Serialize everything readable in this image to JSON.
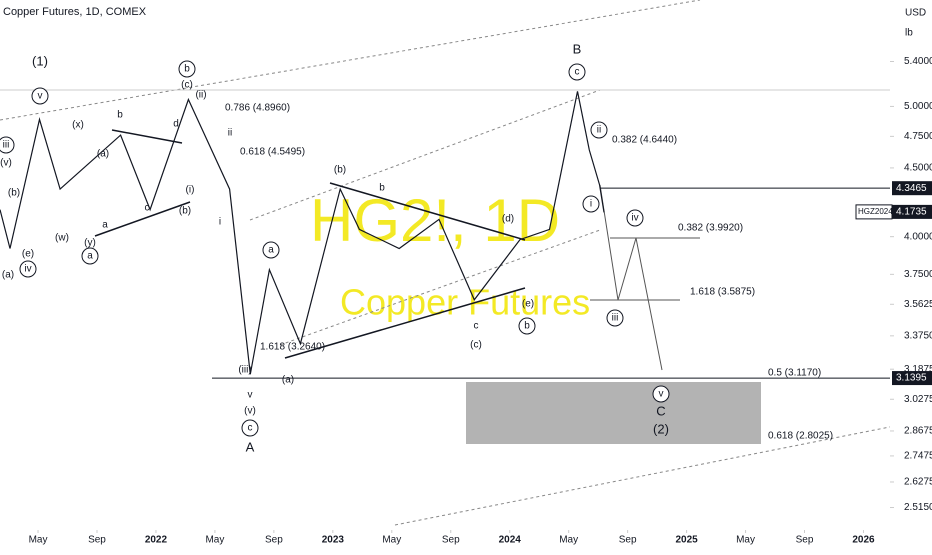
{
  "chart_data": {
    "type": "line",
    "title": "Copper Futures, 1D, COMEX",
    "watermark": "HG2!, 1D",
    "watermark_subtitle": "Copper Futures",
    "currency": "USD",
    "unit": "lb",
    "log_scale": true,
    "x": [
      1.42,
      2.1,
      4.1,
      5.5,
      9.6,
      11.6,
      14.2,
      17.0,
      18.4,
      19.7,
      21.8,
      24.5,
      25.8,
      28.5,
      31.2,
      33.6,
      36.7,
      38.7,
      40.6,
      41.4,
      42.1,
      42.4
    ],
    "values": [
      4.19,
      3.92,
      4.89,
      4.34,
      4.76,
      4.19,
      5.06,
      4.34,
      3.16,
      3.78,
      3.33,
      4.34,
      4.05,
      3.92,
      4.12,
      3.59,
      3.98,
      4.05,
      5.13,
      4.64,
      4.37,
      4.17
    ],
    "color": "#131722",
    "xlim": [
      1.42,
      61.8
    ],
    "xticks": [
      {
        "value": 4,
        "label": "May"
      },
      {
        "value": 8,
        "label": "Sep"
      },
      {
        "value": 12,
        "label": "2022"
      },
      {
        "value": 16,
        "label": "May"
      },
      {
        "value": 20,
        "label": "Sep"
      },
      {
        "value": 24,
        "label": "2023"
      },
      {
        "value": 28,
        "label": "May"
      },
      {
        "value": 32,
        "label": "Sep"
      },
      {
        "value": 36,
        "label": "2024"
      },
      {
        "value": 40,
        "label": "May"
      },
      {
        "value": 44,
        "label": "Sep"
      },
      {
        "value": 48,
        "label": "2025"
      },
      {
        "value": 52,
        "label": "May"
      },
      {
        "value": 56,
        "label": "Sep"
      },
      {
        "value": 60,
        "label": "2026"
      }
    ],
    "ylim": [
      2.42,
      6.0
    ],
    "yticks": [
      {
        "value": 5.4,
        "label": "5.4000"
      },
      {
        "value": 5.0,
        "label": "5.0000"
      },
      {
        "value": 4.75,
        "label": "4.7500"
      },
      {
        "value": 4.5,
        "label": "4.5000"
      },
      {
        "value": 4.0,
        "label": "4.0000"
      },
      {
        "value": 3.75,
        "label": "3.7500"
      },
      {
        "value": 3.5625,
        "label": "3.5625"
      },
      {
        "value": 3.375,
        "label": "3.3750"
      },
      {
        "value": 3.1875,
        "label": "3.1875"
      },
      {
        "value": 3.0275,
        "label": "3.0275"
      },
      {
        "value": 2.8675,
        "label": "2.8675"
      },
      {
        "value": 2.7475,
        "label": "2.7475"
      },
      {
        "value": 2.6275,
        "label": "2.6275"
      },
      {
        "value": 2.515,
        "label": "2.5150"
      }
    ],
    "price_tags": [
      {
        "value": 4.3465,
        "label": "4.3465"
      },
      {
        "name": "HGZ2024",
        "value": 4.1735,
        "label": "4.1735"
      },
      {
        "value": 3.1395,
        "label": "3.1395"
      }
    ],
    "annotations": [
      "(1)",
      "v",
      "b",
      "(c)",
      "(ii)",
      "0.786 (4.8960)",
      "0.618 (4.5495)",
      "B",
      "c",
      "ii",
      "0.382 (4.6440)",
      "(b)",
      "b",
      "(d)",
      "i",
      "iv",
      "0.382 (3.9920)",
      "1.618 (3.5875)",
      "iii",
      "a",
      "1.618 (3.2640)",
      "(iii)",
      "(a)",
      "v",
      "(v)",
      "c",
      "A",
      "(c)",
      "b",
      "(e)",
      "c",
      "0.5 (3.1170)",
      "v",
      "C",
      "(2)",
      "0.618 (2.8025)",
      "(a)",
      "b",
      "d",
      "(x)",
      "iii",
      "(v)",
      "(b)",
      "(w)",
      "(y)",
      "a",
      "(a)",
      "iv",
      "(i)",
      "(b)",
      "c",
      "a",
      "i",
      "ii",
      "(e)"
    ]
  }
}
